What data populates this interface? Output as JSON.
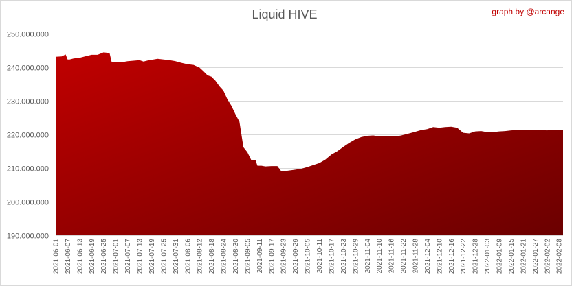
{
  "chart_data": {
    "type": "area",
    "title": "Liquid HIVE",
    "credit": "graph by @arcange",
    "xlabel": "",
    "ylabel": "",
    "ylim": [
      190000000,
      250000000
    ],
    "y_ticks": [
      190000000,
      200000000,
      210000000,
      220000000,
      230000000,
      240000000,
      250000000
    ],
    "y_tick_labels": [
      "190.000.000",
      "200.000.000",
      "210.000.000",
      "220.000.000",
      "230.000.000",
      "240.000.000",
      "250.000.000"
    ],
    "x_tick_labels": [
      "2021-06-01",
      "2021-06-07",
      "2021-06-13",
      "2021-06-19",
      "2021-06-25",
      "2021-07-01",
      "2021-07-07",
      "2021-07-13",
      "2021-07-19",
      "2021-07-25",
      "2021-07-31",
      "2021-08-06",
      "2021-08-12",
      "2021-08-18",
      "2021-08-24",
      "2021-08-30",
      "2021-09-05",
      "2021-09-11",
      "2021-09-17",
      "2021-09-23",
      "2021-09-29",
      "2021-10-05",
      "2021-10-11",
      "2021-10-17",
      "2021-10-23",
      "2021-10-29",
      "2021-11-04",
      "2021-11-10",
      "2021-11-16",
      "2021-11-22",
      "2021-11-28",
      "2021-12-04",
      "2021-12-10",
      "2021-12-16",
      "2021-12-22",
      "2021-12-28",
      "2022-01-03",
      "2022-01-09",
      "2022-01-15",
      "2022-01-21",
      "2022-01-27",
      "2022-02-02",
      "2022-02-08"
    ],
    "grid": true,
    "legend": "none",
    "colors": {
      "fill_light": "#c00000",
      "fill_dark": "#6b0000",
      "grid": "#d9d9d9",
      "text": "#595959",
      "credit": "#c00000"
    },
    "x_start": "2021-06-01",
    "x_end": "2022-02-10",
    "series": [
      {
        "x": [
          "2021-06-01",
          "2021-06-04",
          "2021-06-06",
          "2021-06-07",
          "2021-06-08",
          "2021-06-10",
          "2021-06-13",
          "2021-06-17",
          "2021-06-19",
          "2021-06-22",
          "2021-06-25",
          "2021-06-28",
          "2021-06-29",
          "2021-07-01",
          "2021-07-04",
          "2021-07-07",
          "2021-07-13",
          "2021-07-15",
          "2021-07-17",
          "2021-07-19",
          "2021-07-22",
          "2021-07-25",
          "2021-07-28",
          "2021-07-31",
          "2021-08-03",
          "2021-08-06",
          "2021-08-09",
          "2021-08-12",
          "2021-08-14",
          "2021-08-16",
          "2021-08-18",
          "2021-08-20",
          "2021-08-22",
          "2021-08-24",
          "2021-08-26",
          "2021-08-28",
          "2021-08-30",
          "2021-09-01",
          "2021-09-02",
          "2021-09-03",
          "2021-09-05",
          "2021-09-07",
          "2021-09-09",
          "2021-09-10",
          "2021-09-11",
          "2021-09-12",
          "2021-09-14",
          "2021-09-17",
          "2021-09-20",
          "2021-09-22",
          "2021-09-23",
          "2021-09-24",
          "2021-09-29",
          "2021-10-02",
          "2021-10-05",
          "2021-10-08",
          "2021-10-11",
          "2021-10-14",
          "2021-10-17",
          "2021-10-20",
          "2021-10-23",
          "2021-10-26",
          "2021-10-29",
          "2021-11-01",
          "2021-11-04",
          "2021-11-07",
          "2021-11-10",
          "2021-11-13",
          "2021-11-16",
          "2021-11-20",
          "2021-11-21",
          "2021-11-25",
          "2021-11-28",
          "2021-12-01",
          "2021-12-04",
          "2021-12-07",
          "2021-12-10",
          "2021-12-13",
          "2021-12-16",
          "2021-12-19",
          "2021-12-22",
          "2021-12-25",
          "2021-12-28",
          "2021-12-31",
          "2022-01-03",
          "2022-01-06",
          "2022-01-09",
          "2022-01-12",
          "2022-01-15",
          "2022-01-18",
          "2022-01-21",
          "2022-01-24",
          "2022-01-27",
          "2022-01-30",
          "2022-02-02",
          "2022-02-05",
          "2022-02-08",
          "2022-02-10"
        ],
        "values": [
          243100000,
          243200000,
          243800000,
          242300000,
          242300000,
          242600000,
          242800000,
          243400000,
          243700000,
          243700000,
          244400000,
          244200000,
          241600000,
          241500000,
          241500000,
          241800000,
          242100000,
          241700000,
          242000000,
          242200000,
          242500000,
          242300000,
          242100000,
          241800000,
          241300000,
          240900000,
          240700000,
          239900000,
          238800000,
          237600000,
          237200000,
          236000000,
          234300000,
          233000000,
          230400000,
          228500000,
          226000000,
          223800000,
          220000000,
          216200000,
          214700000,
          212300000,
          212400000,
          210700000,
          210700000,
          210700000,
          210500000,
          210600000,
          210600000,
          209000000,
          209000000,
          209100000,
          209500000,
          209800000,
          210300000,
          210900000,
          211500000,
          212500000,
          214000000,
          215000000,
          216300000,
          217500000,
          218500000,
          219200000,
          219600000,
          219700000,
          219400000,
          219400000,
          219500000,
          219600000,
          219700000,
          220300000,
          220800000,
          221300000,
          221600000,
          222200000,
          222000000,
          222200000,
          222300000,
          222000000,
          220500000,
          220300000,
          220900000,
          221000000,
          220700000,
          220700000,
          220900000,
          221000000,
          221200000,
          221300000,
          221400000,
          221300000,
          221300000,
          221300000,
          221200000,
          221400000,
          221400000,
          221400000
        ]
      }
    ]
  }
}
